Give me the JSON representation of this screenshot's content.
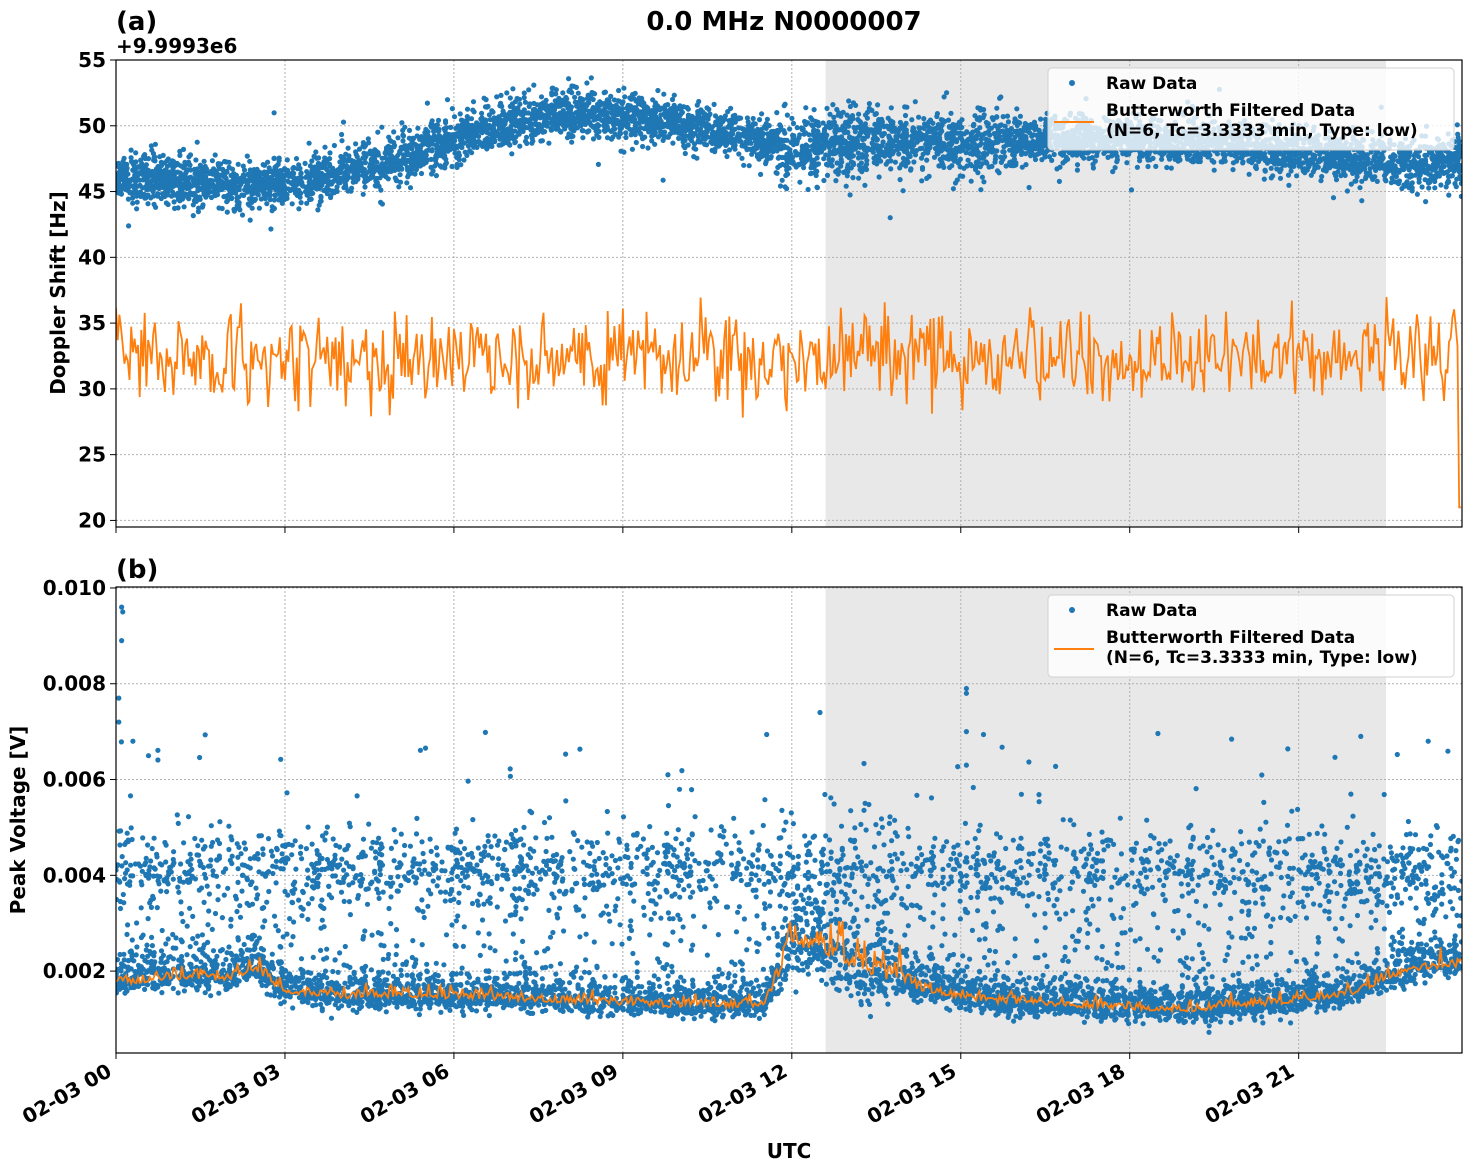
{
  "chart_data": [
    {
      "type": "scatter+line",
      "panel_label": "(a)",
      "title": "0.0 MHz N0000007",
      "ylabel": "Doppler Shift [Hz]",
      "offset_label": "+9.9993e6",
      "ylim": [
        19.5,
        55
      ],
      "xlim_hours": [
        0,
        23.9
      ],
      "yticks": [
        "20",
        "25",
        "30",
        "35",
        "40",
        "45",
        "50",
        "55"
      ],
      "ytick_values": [
        20,
        25,
        30,
        35,
        40,
        45,
        50,
        55
      ],
      "grid": true,
      "shaded_region_hours": [
        12.6,
        22.55
      ],
      "legend": {
        "placement": "top-right",
        "entries": [
          "Raw Data",
          "Butterworth Filtered Data",
          "(N=6, Tc=3.3333 min, Type: low)"
        ]
      },
      "series": [
        {
          "name": "Raw Data",
          "kind": "scatter",
          "color": "#1f77b4",
          "trend_x_hours": [
            0,
            1,
            2,
            3,
            4,
            5,
            6,
            7,
            8,
            9,
            10,
            11,
            12,
            13,
            14,
            15,
            16,
            17,
            18,
            19,
            20,
            21,
            22,
            23,
            23.9
          ],
          "trend_y": [
            46,
            46,
            45.5,
            45.5,
            46.5,
            47.5,
            49,
            50.3,
            51,
            50.7,
            50.2,
            49.3,
            48.2,
            48.6,
            49,
            48.6,
            49,
            49,
            49,
            48.7,
            48.5,
            48,
            47.6,
            47,
            47.3
          ]
        },
        {
          "name": "Butterworth Filtered Data",
          "kind": "line",
          "color": "#ff7f0e",
          "mean": 32.5,
          "range": [
            26.5,
            38.5
          ],
          "final_value": 21
        }
      ]
    },
    {
      "type": "scatter+line",
      "panel_label": "(b)",
      "ylabel": "Peak Voltage [V]",
      "xlabel": "UTC",
      "ylim": [
        0.00029,
        0.01002
      ],
      "xlim_hours": [
        0,
        23.9
      ],
      "yticks": [
        "0.002",
        "0.004",
        "0.006",
        "0.008",
        "0.010"
      ],
      "ytick_values": [
        0.002,
        0.004,
        0.006,
        0.008,
        0.01
      ],
      "xticks": [
        "02-03 00",
        "02-03 03",
        "02-03 06",
        "02-03 09",
        "02-03 12",
        "02-03 15",
        "02-03 18",
        "02-03 21"
      ],
      "xtick_hours": [
        0,
        3,
        6,
        9,
        12,
        15,
        18,
        21
      ],
      "grid": true,
      "shaded_region_hours": [
        12.6,
        22.55
      ],
      "legend": {
        "placement": "top-right",
        "entries": [
          "Raw Data",
          "Butterworth Filtered Data",
          "(N=6, Tc=3.3333 min, Type: low)"
        ]
      },
      "series": [
        {
          "name": "Raw Data",
          "kind": "scatter",
          "color": "#1f77b4",
          "upper_band": 0.0042,
          "trend_x_hours": [
            0,
            1,
            2,
            2.5,
            3,
            4,
            6,
            8,
            10,
            11.5,
            12,
            12.5,
            13,
            13.5,
            14.5,
            15.5,
            17,
            19,
            21,
            22,
            23,
            23.9
          ],
          "trend_y": [
            0.0018,
            0.0019,
            0.0019,
            0.0021,
            0.0016,
            0.0015,
            0.0015,
            0.0014,
            0.0013,
            0.0013,
            0.0026,
            0.0025,
            0.0021,
            0.002,
            0.0016,
            0.0014,
            0.0013,
            0.0012,
            0.0014,
            0.0016,
            0.0021,
            0.0022
          ]
        },
        {
          "name": "Butterworth Filtered Data",
          "kind": "line",
          "color": "#ff7f0e"
        }
      ]
    }
  ]
}
